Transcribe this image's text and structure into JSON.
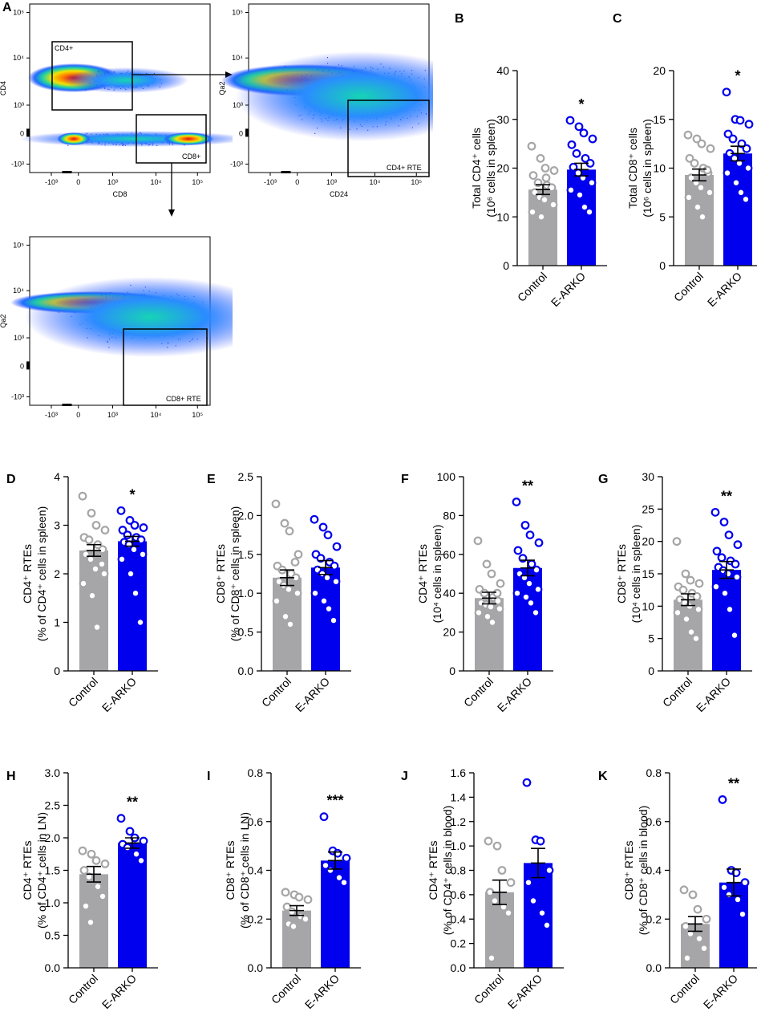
{
  "flow_panels": [
    {
      "letter": "A",
      "xlabel": "CD8",
      "ylabel": "CD4",
      "x_ticks": [
        "-10³",
        "0",
        "10³",
        "10⁴",
        "10⁵"
      ],
      "y_ticks": [
        "10⁵",
        "10⁴",
        "10³",
        "0",
        "-10³"
      ],
      "gates": [
        "CD4+",
        "CD8+"
      ]
    },
    {
      "letter": "",
      "xlabel": "CD24",
      "ylabel": "Qa2",
      "x_ticks": [
        "-10³",
        "0",
        "10³",
        "10⁴",
        "10⁵"
      ],
      "y_ticks": [
        "10⁵",
        "10⁴",
        "10³",
        "0",
        "-10³"
      ],
      "gates": [
        "CD4+ RTE"
      ]
    },
    {
      "letter": "",
      "xlabel": "CD24",
      "ylabel": "Qa2",
      "x_ticks": [
        "-10³",
        "0",
        "10³",
        "10⁴",
        "10⁵"
      ],
      "y_ticks": [
        "10⁵",
        "10⁴",
        "10³",
        "0",
        "-10³"
      ],
      "gates": [
        "CD8+ RTE"
      ]
    }
  ],
  "colors": {
    "control": "#a6a6a8",
    "earko": "#0000ee",
    "control_dot": "#a6a6a8",
    "earko_dot": "#0000ee"
  },
  "chart_data": [
    {
      "type": "bar",
      "letter": "B",
      "categories": [
        "Control",
        "E-ARKO"
      ],
      "ylabel_lines": [
        "Total CD4⁺ cells",
        "(10⁶ cells in spleen)"
      ],
      "ylim": [
        0,
        40
      ],
      "yticks": [
        0,
        10,
        20,
        30,
        40
      ],
      "significance": "*",
      "series": [
        {
          "name": "Control",
          "mean": 15.6,
          "sem": 1.0,
          "points": [
            24.5,
            22.0,
            20.0,
            19.5,
            18.5,
            17.0,
            16.5,
            16.0,
            15.0,
            14.0,
            13.5,
            12.5,
            11.0,
            10.0,
            18.0
          ]
        },
        {
          "name": "E-ARKO",
          "mean": 19.7,
          "sem": 1.3,
          "points": [
            29.8,
            28.5,
            27.2,
            26.0,
            24.8,
            23.0,
            22.0,
            21.0,
            20.2,
            19.0,
            18.0,
            17.0,
            15.5,
            14.5,
            12.0,
            11.0
          ]
        }
      ]
    },
    {
      "type": "bar",
      "letter": "C",
      "categories": [
        "Control",
        "E-ARKO"
      ],
      "ylabel_lines": [
        "Total CD8⁺ cells",
        "(10⁶ cells in spleen)"
      ],
      "ylim": [
        0,
        20
      ],
      "yticks": [
        0,
        5,
        10,
        15,
        20
      ],
      "significance": "*",
      "series": [
        {
          "name": "Control",
          "mean": 9.3,
          "sem": 0.6,
          "points": [
            13.4,
            13.0,
            12.5,
            12.0,
            11.0,
            10.5,
            10.0,
            9.5,
            9.0,
            8.5,
            8.0,
            7.5,
            7.0,
            6.0,
            5.0,
            9.8
          ]
        },
        {
          "name": "E-ARKO",
          "mean": 11.5,
          "sem": 0.75,
          "points": [
            17.8,
            15.0,
            14.9,
            14.5,
            13.5,
            13.0,
            12.5,
            12.0,
            11.5,
            11.0,
            10.5,
            10.0,
            9.5,
            8.5,
            7.5,
            6.8
          ]
        }
      ]
    },
    {
      "type": "bar",
      "letter": "D",
      "categories": [
        "Control",
        "E-ARKO"
      ],
      "ylabel_lines": [
        "CD4⁺ RTEs",
        "(% of CD4⁺ cells in spleen)"
      ],
      "ylim": [
        0,
        4
      ],
      "yticks": [
        0,
        1,
        2,
        3,
        4
      ],
      "significance": "*",
      "series": [
        {
          "name": "Control",
          "mean": 2.48,
          "sem": 0.12,
          "points": [
            3.6,
            3.25,
            3.0,
            2.9,
            2.75,
            2.7,
            2.6,
            2.5,
            2.4,
            2.3,
            2.1,
            2.0,
            1.8,
            1.55,
            0.9,
            2.2
          ]
        },
        {
          "name": "E-ARKO",
          "mean": 2.67,
          "sem": 0.1,
          "points": [
            3.3,
            3.1,
            3.0,
            2.95,
            2.9,
            2.8,
            2.75,
            2.7,
            2.65,
            2.6,
            2.5,
            2.4,
            2.3,
            2.0,
            1.6,
            1.0
          ]
        }
      ]
    },
    {
      "type": "bar",
      "letter": "E",
      "categories": [
        "Control",
        "E-ARKO"
      ],
      "ylabel_lines": [
        "CD8⁺ RTEs",
        "(% of CD8⁺ cells in spleen)"
      ],
      "ylim": [
        0,
        2.5
      ],
      "yticks": [
        0.0,
        0.5,
        1.0,
        1.5,
        2.0,
        2.5
      ],
      "significance": "",
      "series": [
        {
          "name": "Control",
          "mean": 1.2,
          "sem": 0.1,
          "points": [
            2.15,
            1.9,
            1.8,
            1.5,
            1.35,
            1.3,
            1.25,
            1.2,
            1.15,
            1.1,
            1.05,
            1.0,
            0.9,
            0.7,
            0.6,
            1.4
          ]
        },
        {
          "name": "E-ARKO",
          "mean": 1.33,
          "sem": 0.09,
          "points": [
            1.95,
            1.85,
            1.75,
            1.6,
            1.5,
            1.45,
            1.4,
            1.35,
            1.3,
            1.25,
            1.2,
            1.15,
            1.0,
            0.9,
            0.8,
            0.65
          ]
        }
      ]
    },
    {
      "type": "bar",
      "letter": "F",
      "categories": [
        "Control",
        "E-ARKO"
      ],
      "ylabel_lines": [
        "CD4⁺ RTEs",
        "(10⁴ cells in spleen)"
      ],
      "ylim": [
        0,
        100
      ],
      "yticks": [
        0,
        20,
        40,
        60,
        80,
        100
      ],
      "significance": "**",
      "series": [
        {
          "name": "Control",
          "mean": 37.5,
          "sem": 3.0,
          "points": [
            67,
            55,
            50,
            45,
            42,
            40,
            38,
            36,
            35,
            34,
            33,
            32,
            30,
            28,
            25,
            40
          ]
        },
        {
          "name": "E-ARKO",
          "mean": 53,
          "sem": 4.0,
          "points": [
            87,
            75,
            70,
            66,
            62,
            58,
            55,
            52,
            50,
            48,
            45,
            42,
            40,
            38,
            35,
            30
          ]
        }
      ]
    },
    {
      "type": "bar",
      "letter": "G",
      "categories": [
        "Control",
        "E-ARKO"
      ],
      "ylabel_lines": [
        "CD8⁺ RTEs",
        "(10⁴ cells in spleen)"
      ],
      "ylim": [
        0,
        30
      ],
      "yticks": [
        0,
        5,
        10,
        15,
        20,
        25,
        30
      ],
      "significance": "**",
      "series": [
        {
          "name": "Control",
          "mean": 11.0,
          "sem": 0.9,
          "points": [
            20,
            15,
            14,
            13.5,
            13,
            12.5,
            12,
            11.5,
            11,
            10.5,
            10,
            9.5,
            9,
            8,
            6,
            5
          ]
        },
        {
          "name": "E-ARKO",
          "mean": 15.6,
          "sem": 1.3,
          "points": [
            24.5,
            23,
            21,
            19.5,
            18.5,
            17.5,
            17,
            16.5,
            16,
            15.5,
            15,
            14.5,
            13,
            12,
            9.5,
            5.5
          ]
        }
      ]
    },
    {
      "type": "bar",
      "letter": "H",
      "categories": [
        "Control",
        "E-ARKO"
      ],
      "ylabel_lines": [
        "CD4⁺ RTEs",
        "(% of CD4⁺ cells in LN)"
      ],
      "ylim": [
        0,
        3.0
      ],
      "yticks": [
        0.0,
        0.5,
        1.0,
        1.5,
        2.0,
        2.5,
        3.0
      ],
      "significance": "**",
      "series": [
        {
          "name": "Control",
          "mean": 1.44,
          "sem": 0.12,
          "points": [
            1.8,
            1.75,
            1.65,
            1.6,
            1.5,
            1.4,
            1.25,
            1.1,
            0.95,
            0.7
          ]
        },
        {
          "name": "E-ARKO",
          "mean": 1.92,
          "sem": 0.08,
          "points": [
            2.3,
            2.1,
            2.0,
            1.95,
            1.9,
            1.85,
            1.75,
            1.65
          ]
        }
      ]
    },
    {
      "type": "bar",
      "letter": "I",
      "categories": [
        "Control",
        "E-ARKO"
      ],
      "ylabel_lines": [
        "CD8⁺ RTEs",
        "(% of CD8⁺ cells in LN)"
      ],
      "ylim": [
        0,
        0.8
      ],
      "yticks": [
        0.0,
        0.2,
        0.4,
        0.6,
        0.8
      ],
      "significance": "***",
      "series": [
        {
          "name": "Control",
          "mean": 0.235,
          "sem": 0.02,
          "points": [
            0.31,
            0.3,
            0.29,
            0.28,
            0.25,
            0.23,
            0.21,
            0.2,
            0.18,
            0.17
          ]
        },
        {
          "name": "E-ARKO",
          "mean": 0.44,
          "sem": 0.035,
          "points": [
            0.62,
            0.48,
            0.47,
            0.45,
            0.42,
            0.4,
            0.37,
            0.35
          ]
        }
      ]
    },
    {
      "type": "bar",
      "letter": "J",
      "categories": [
        "Control",
        "E-ARKO"
      ],
      "ylabel_lines": [
        "CD4⁺ RTEs",
        "(% of CD4⁺ cells in blood)"
      ],
      "ylim": [
        0,
        1.6
      ],
      "yticks": [
        0.0,
        0.2,
        0.4,
        0.6,
        0.8,
        1.0,
        1.2,
        1.4,
        1.6
      ],
      "significance": "",
      "series": [
        {
          "name": "Control",
          "mean": 0.62,
          "sem": 0.1,
          "points": [
            1.04,
            1.0,
            0.8,
            0.7,
            0.62,
            0.55,
            0.5,
            0.45,
            0.08
          ]
        },
        {
          "name": "E-ARKO",
          "mean": 0.86,
          "sem": 0.12,
          "points": [
            1.52,
            1.05,
            1.04,
            0.8,
            0.7,
            0.55,
            0.45,
            0.35
          ]
        }
      ]
    },
    {
      "type": "bar",
      "letter": "K",
      "categories": [
        "Control",
        "E-ARKO"
      ],
      "ylabel_lines": [
        "CD8⁺ RTEs",
        "(% of CD8⁺ cells in blood)"
      ],
      "ylim": [
        0,
        0.8
      ],
      "yticks": [
        0.0,
        0.2,
        0.4,
        0.6,
        0.8
      ],
      "significance": "**",
      "series": [
        {
          "name": "Control",
          "mean": 0.18,
          "sem": 0.03,
          "points": [
            0.32,
            0.3,
            0.24,
            0.2,
            0.17,
            0.14,
            0.12,
            0.08,
            0.04
          ]
        },
        {
          "name": "E-ARKO",
          "mean": 0.35,
          "sem": 0.055,
          "points": [
            0.69,
            0.4,
            0.39,
            0.35,
            0.33,
            0.3,
            0.28,
            0.22
          ]
        }
      ]
    }
  ]
}
